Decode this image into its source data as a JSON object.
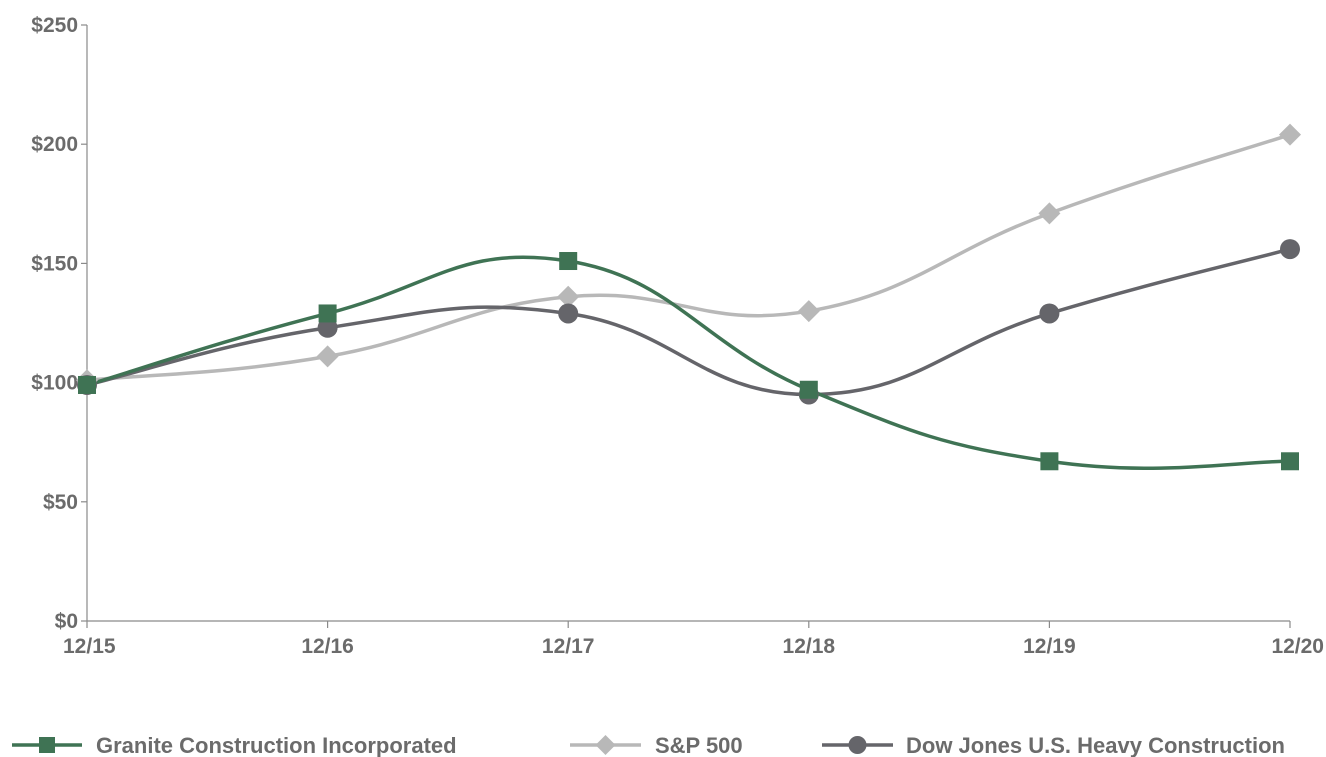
{
  "chart_data": {
    "type": "line",
    "title": "",
    "xlabel": "",
    "ylabel": "",
    "categories": [
      "12/15",
      "12/16",
      "12/17",
      "12/18",
      "12/19",
      "12/20"
    ],
    "ylim": [
      0,
      250
    ],
    "yticks": [
      0,
      50,
      100,
      150,
      200,
      250
    ],
    "ytick_labels": [
      "$0",
      "$50",
      "$100",
      "$150",
      "$200",
      "$250"
    ],
    "grid": false,
    "legend_position": "bottom",
    "series": [
      {
        "name": "Granite Construction Incorporated",
        "values": [
          99,
          129,
          151,
          97,
          67,
          67
        ],
        "color": "#3f7354",
        "marker": "square"
      },
      {
        "name": "S&P 500",
        "values": [
          101,
          111,
          136,
          130,
          171,
          204
        ],
        "color": "#b8b8b8",
        "marker": "diamond"
      },
      {
        "name": "Dow Jones U.S. Heavy Construction",
        "values": [
          99,
          123,
          129,
          95,
          129,
          156
        ],
        "color": "#65656a",
        "marker": "circle"
      }
    ]
  }
}
